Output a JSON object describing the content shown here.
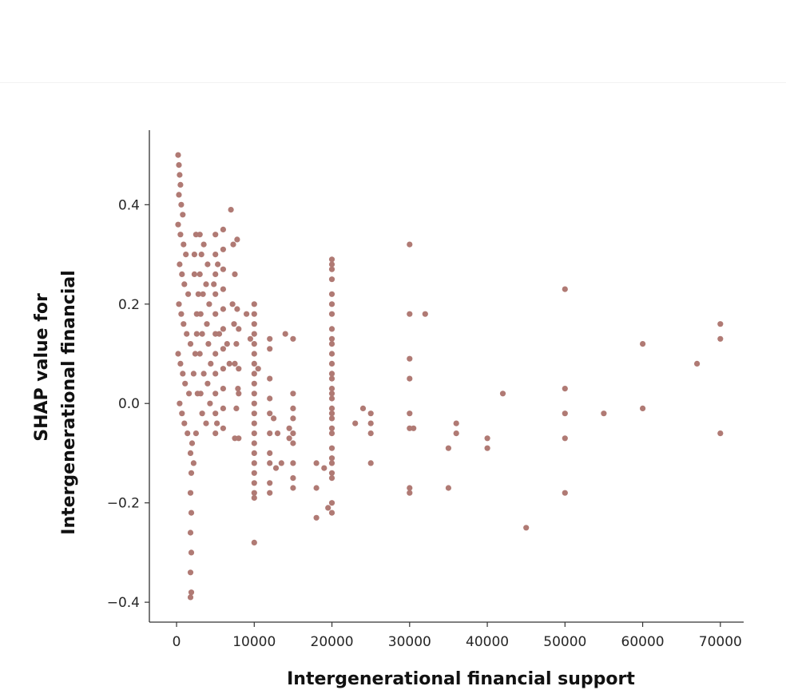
{
  "chart_data": {
    "type": "scatter",
    "title": "",
    "xlabel": "Intergenerational financial support",
    "ylabel_lines": [
      "SHAP value for",
      "Intergenerational financial"
    ],
    "xlim": [
      -3500,
      73000
    ],
    "ylim": [
      -0.44,
      0.55
    ],
    "x_ticks": [
      0,
      10000,
      20000,
      30000,
      40000,
      50000,
      60000,
      70000
    ],
    "x_tick_labels": [
      "0",
      "10000",
      "20000",
      "30000",
      "40000",
      "50000",
      "60000",
      "70000"
    ],
    "y_ticks": [
      -0.4,
      -0.2,
      0.0,
      0.2,
      0.4
    ],
    "y_tick_labels": [
      "−0.4",
      "−0.2",
      "0.0",
      "0.2",
      "0.4"
    ],
    "grid": false,
    "legend": "none",
    "point_color": "#b07a74",
    "points": [
      [
        200,
        0.5
      ],
      [
        300,
        0.48
      ],
      [
        400,
        0.46
      ],
      [
        500,
        0.44
      ],
      [
        300,
        0.42
      ],
      [
        600,
        0.4
      ],
      [
        800,
        0.38
      ],
      [
        200,
        0.36
      ],
      [
        500,
        0.34
      ],
      [
        900,
        0.32
      ],
      [
        1200,
        0.3
      ],
      [
        400,
        0.28
      ],
      [
        700,
        0.26
      ],
      [
        1000,
        0.24
      ],
      [
        1500,
        0.22
      ],
      [
        300,
        0.2
      ],
      [
        600,
        0.18
      ],
      [
        900,
        0.16
      ],
      [
        1300,
        0.14
      ],
      [
        1800,
        0.12
      ],
      [
        200,
        0.1
      ],
      [
        500,
        0.08
      ],
      [
        800,
        0.06
      ],
      [
        1100,
        0.04
      ],
      [
        1600,
        0.02
      ],
      [
        400,
        0.0
      ],
      [
        700,
        -0.02
      ],
      [
        1000,
        -0.04
      ],
      [
        1400,
        -0.06
      ],
      [
        2000,
        -0.08
      ],
      [
        1800,
        -0.1
      ],
      [
        1900,
        -0.14
      ],
      [
        1800,
        -0.18
      ],
      [
        1900,
        -0.22
      ],
      [
        1800,
        -0.26
      ],
      [
        1900,
        -0.3
      ],
      [
        1800,
        -0.34
      ],
      [
        1900,
        -0.38
      ],
      [
        1800,
        -0.39
      ],
      [
        2200,
        -0.12
      ],
      [
        2500,
        0.34
      ],
      [
        2300,
        0.26
      ],
      [
        2600,
        0.18
      ],
      [
        2400,
        0.1
      ],
      [
        2700,
        0.02
      ],
      [
        2500,
        -0.06
      ],
      [
        2300,
        0.3
      ],
      [
        2800,
        0.22
      ],
      [
        2600,
        0.14
      ],
      [
        2200,
        0.06
      ],
      [
        3000,
        0.34
      ],
      [
        3200,
        0.3
      ],
      [
        3000,
        0.26
      ],
      [
        3400,
        0.22
      ],
      [
        3100,
        0.18
      ],
      [
        3300,
        0.14
      ],
      [
        3000,
        0.1
      ],
      [
        3500,
        0.06
      ],
      [
        3100,
        0.02
      ],
      [
        3300,
        -0.02
      ],
      [
        3500,
        0.32
      ],
      [
        4000,
        0.28
      ],
      [
        3800,
        0.24
      ],
      [
        4200,
        0.2
      ],
      [
        3900,
        0.16
      ],
      [
        4100,
        0.12
      ],
      [
        4400,
        0.08
      ],
      [
        4000,
        0.04
      ],
      [
        4300,
        0.0
      ],
      [
        3800,
        -0.04
      ],
      [
        5000,
        0.34
      ],
      [
        5000,
        0.3
      ],
      [
        5000,
        0.26
      ],
      [
        5000,
        0.22
      ],
      [
        5000,
        0.18
      ],
      [
        5000,
        0.14
      ],
      [
        5000,
        0.1
      ],
      [
        5000,
        0.06
      ],
      [
        5000,
        0.02
      ],
      [
        5000,
        -0.02
      ],
      [
        5000,
        -0.06
      ],
      [
        5300,
        0.28
      ],
      [
        5500,
        0.14
      ],
      [
        5200,
        -0.04
      ],
      [
        4800,
        0.24
      ],
      [
        6000,
        0.35
      ],
      [
        6000,
        0.31
      ],
      [
        6000,
        0.27
      ],
      [
        6000,
        0.23
      ],
      [
        6000,
        0.19
      ],
      [
        6000,
        0.15
      ],
      [
        6000,
        0.11
      ],
      [
        6000,
        0.07
      ],
      [
        6000,
        0.03
      ],
      [
        6000,
        -0.01
      ],
      [
        6000,
        -0.05
      ],
      [
        6500,
        0.12
      ],
      [
        6800,
        0.08
      ],
      [
        7000,
        0.39
      ],
      [
        7300,
        0.32
      ],
      [
        7800,
        0.33
      ],
      [
        7500,
        0.26
      ],
      [
        7200,
        0.2
      ],
      [
        7800,
        0.19
      ],
      [
        7400,
        0.16
      ],
      [
        7700,
        0.12
      ],
      [
        7500,
        0.08
      ],
      [
        7900,
        0.03
      ],
      [
        7700,
        -0.01
      ],
      [
        7500,
        -0.07
      ],
      [
        8000,
        -0.07
      ],
      [
        8000,
        0.15
      ],
      [
        8000,
        0.07
      ],
      [
        8000,
        0.02
      ],
      [
        9000,
        0.18
      ],
      [
        9500,
        0.13
      ],
      [
        10000,
        0.2
      ],
      [
        10000,
        0.18
      ],
      [
        10000,
        0.16
      ],
      [
        10000,
        0.14
      ],
      [
        10000,
        0.12
      ],
      [
        10000,
        0.1
      ],
      [
        10000,
        0.08
      ],
      [
        10000,
        0.06
      ],
      [
        10000,
        0.04
      ],
      [
        10000,
        0.02
      ],
      [
        10000,
        0.0
      ],
      [
        10000,
        -0.02
      ],
      [
        10000,
        -0.04
      ],
      [
        10000,
        -0.06
      ],
      [
        10000,
        -0.08
      ],
      [
        10000,
        -0.1
      ],
      [
        10000,
        -0.12
      ],
      [
        10000,
        -0.14
      ],
      [
        10000,
        -0.16
      ],
      [
        10000,
        -0.18
      ],
      [
        10000,
        -0.19
      ],
      [
        10000,
        -0.28
      ],
      [
        10500,
        0.07
      ],
      [
        12000,
        0.13
      ],
      [
        12000,
        0.11
      ],
      [
        12000,
        0.05
      ],
      [
        12000,
        0.01
      ],
      [
        12000,
        -0.02
      ],
      [
        12000,
        -0.06
      ],
      [
        12000,
        -0.1
      ],
      [
        12000,
        -0.12
      ],
      [
        12000,
        -0.16
      ],
      [
        12000,
        -0.18
      ],
      [
        12500,
        -0.03
      ],
      [
        12800,
        -0.13
      ],
      [
        13000,
        -0.06
      ],
      [
        13500,
        -0.12
      ],
      [
        14000,
        0.14
      ],
      [
        14500,
        -0.07
      ],
      [
        14500,
        -0.05
      ],
      [
        15000,
        0.13
      ],
      [
        15000,
        0.02
      ],
      [
        15000,
        -0.01
      ],
      [
        15000,
        -0.03
      ],
      [
        15000,
        -0.06
      ],
      [
        15000,
        -0.08
      ],
      [
        15000,
        -0.12
      ],
      [
        15000,
        -0.15
      ],
      [
        15000,
        -0.17
      ],
      [
        18000,
        -0.12
      ],
      [
        18000,
        -0.17
      ],
      [
        18000,
        -0.23
      ],
      [
        19000,
        -0.13
      ],
      [
        19500,
        -0.21
      ],
      [
        20000,
        0.29
      ],
      [
        20000,
        0.28
      ],
      [
        20000,
        0.27
      ],
      [
        20000,
        0.25
      ],
      [
        20000,
        0.22
      ],
      [
        20000,
        0.2
      ],
      [
        20000,
        0.18
      ],
      [
        20000,
        0.15
      ],
      [
        20000,
        0.13
      ],
      [
        20000,
        0.12
      ],
      [
        20000,
        0.1
      ],
      [
        20000,
        0.08
      ],
      [
        20000,
        0.06
      ],
      [
        20000,
        0.05
      ],
      [
        20000,
        0.03
      ],
      [
        20000,
        0.02
      ],
      [
        20000,
        0.01
      ],
      [
        20000,
        -0.01
      ],
      [
        20000,
        -0.02
      ],
      [
        20000,
        -0.03
      ],
      [
        20000,
        -0.05
      ],
      [
        20000,
        -0.06
      ],
      [
        20000,
        -0.09
      ],
      [
        20000,
        -0.11
      ],
      [
        20000,
        -0.12
      ],
      [
        20000,
        -0.14
      ],
      [
        20000,
        -0.15
      ],
      [
        20000,
        -0.2
      ],
      [
        20000,
        -0.22
      ],
      [
        23000,
        -0.04
      ],
      [
        24000,
        -0.01
      ],
      [
        25000,
        -0.02
      ],
      [
        25000,
        -0.04
      ],
      [
        25000,
        -0.06
      ],
      [
        25000,
        -0.12
      ],
      [
        30000,
        0.32
      ],
      [
        30000,
        0.18
      ],
      [
        30000,
        0.09
      ],
      [
        30000,
        0.05
      ],
      [
        30000,
        -0.02
      ],
      [
        30000,
        -0.05
      ],
      [
        30000,
        -0.17
      ],
      [
        30000,
        -0.18
      ],
      [
        30500,
        -0.05
      ],
      [
        32000,
        0.18
      ],
      [
        35000,
        -0.09
      ],
      [
        35000,
        -0.17
      ],
      [
        36000,
        -0.04
      ],
      [
        36000,
        -0.06
      ],
      [
        40000,
        -0.07
      ],
      [
        40000,
        -0.09
      ],
      [
        42000,
        0.02
      ],
      [
        45000,
        -0.25
      ],
      [
        50000,
        0.23
      ],
      [
        50000,
        0.03
      ],
      [
        50000,
        -0.02
      ],
      [
        50000,
        -0.07
      ],
      [
        50000,
        -0.18
      ],
      [
        55000,
        -0.02
      ],
      [
        60000,
        0.12
      ],
      [
        60000,
        -0.01
      ],
      [
        67000,
        0.08
      ],
      [
        70000,
        0.16
      ],
      [
        70000,
        0.13
      ],
      [
        70000,
        -0.06
      ]
    ]
  }
}
